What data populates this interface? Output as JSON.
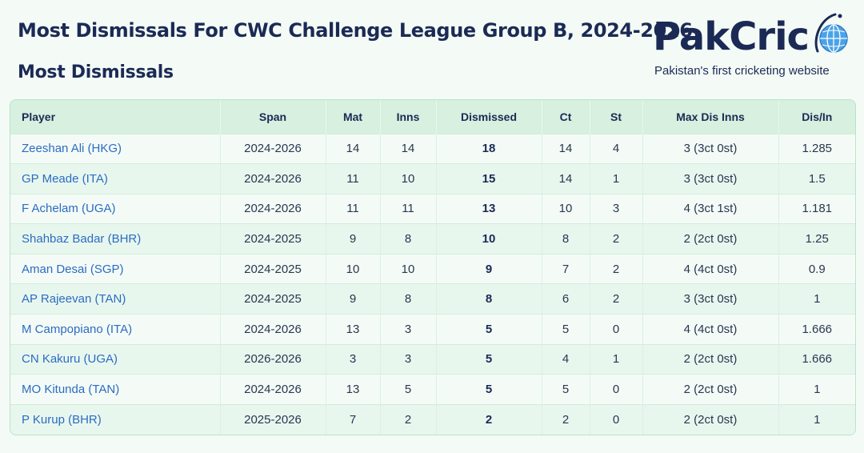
{
  "header": {
    "title": "Most Dismissals For CWC Challenge League Group B, 2024-2026",
    "subtitle": "Most Dismissals"
  },
  "brand": {
    "name": "PakCric",
    "tagline": "Pakistan's first cricketing website",
    "logo_icon": "globe-icon",
    "colors": {
      "navy": "#1b2a55",
      "globe": "#4aa3e8"
    }
  },
  "table": {
    "columns": [
      "Player",
      "Span",
      "Mat",
      "Inns",
      "Dismissed",
      "Ct",
      "St",
      "Max Dis Inns",
      "Dis/In"
    ],
    "rows": [
      [
        "Zeeshan Ali (HKG)",
        "2024-2026",
        "14",
        "14",
        "18",
        "14",
        "4",
        "3 (3ct 0st)",
        "1.285"
      ],
      [
        "GP Meade (ITA)",
        "2024-2026",
        "11",
        "10",
        "15",
        "14",
        "1",
        "3 (3ct 0st)",
        "1.5"
      ],
      [
        "F Achelam (UGA)",
        "2024-2026",
        "11",
        "11",
        "13",
        "10",
        "3",
        "4 (3ct 1st)",
        "1.181"
      ],
      [
        "Shahbaz Badar (BHR)",
        "2024-2025",
        "9",
        "8",
        "10",
        "8",
        "2",
        "2 (2ct 0st)",
        "1.25"
      ],
      [
        "Aman Desai (SGP)",
        "2024-2025",
        "10",
        "10",
        "9",
        "7",
        "2",
        "4 (4ct 0st)",
        "0.9"
      ],
      [
        "AP Rajeevan (TAN)",
        "2024-2025",
        "9",
        "8",
        "8",
        "6",
        "2",
        "3 (3ct 0st)",
        "1"
      ],
      [
        "M Campopiano (ITA)",
        "2024-2026",
        "13",
        "3",
        "5",
        "5",
        "0",
        "4 (4ct 0st)",
        "1.666"
      ],
      [
        "CN Kakuru (UGA)",
        "2026-2026",
        "3",
        "3",
        "5",
        "4",
        "1",
        "2 (2ct 0st)",
        "1.666"
      ],
      [
        "MO Kitunda (TAN)",
        "2024-2026",
        "13",
        "5",
        "5",
        "5",
        "0",
        "2 (2ct 0st)",
        "1"
      ],
      [
        "P Kurup (BHR)",
        "2025-2026",
        "7",
        "2",
        "2",
        "2",
        "0",
        "2 (2ct 0st)",
        "1"
      ]
    ]
  }
}
